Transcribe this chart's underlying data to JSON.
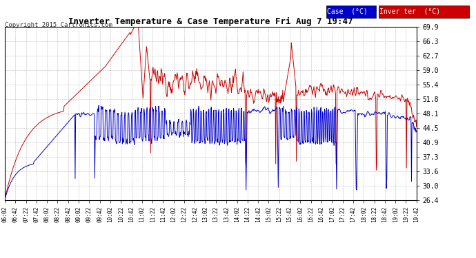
{
  "title": "Inverter Temperature & Case Temperature Fri Aug 7 19:47",
  "copyright": "Copyright 2015 Cartronics.com",
  "legend_case_label": "Case  (°C)",
  "legend_inverter_label": "Inver ter  (°C)",
  "yticks": [
    26.4,
    30.0,
    33.6,
    37.3,
    40.9,
    44.5,
    48.1,
    51.8,
    55.4,
    59.0,
    62.7,
    66.3,
    69.9
  ],
  "xtick_labels": [
    "06:02",
    "06:42",
    "07:22",
    "07:42",
    "08:02",
    "08:22",
    "08:42",
    "09:02",
    "09:22",
    "09:42",
    "10:02",
    "10:22",
    "10:42",
    "11:02",
    "11:22",
    "11:42",
    "12:02",
    "12:22",
    "12:42",
    "13:02",
    "13:22",
    "13:42",
    "14:02",
    "14:22",
    "14:42",
    "15:02",
    "15:22",
    "15:42",
    "16:02",
    "16:22",
    "16:42",
    "17:02",
    "17:22",
    "17:42",
    "18:02",
    "18:22",
    "18:42",
    "19:02",
    "19:22",
    "19:42"
  ],
  "bg_color": "#ffffff",
  "grid_color": "#bbbbbb",
  "case_color": "#0000cc",
  "inverter_color": "#cc0000",
  "legend_case_bg": "#0000cc",
  "legend_inverter_bg": "#cc0000",
  "legend_text_color": "#ffffff",
  "ylim": [
    26.4,
    69.9
  ],
  "line_width": 0.7
}
